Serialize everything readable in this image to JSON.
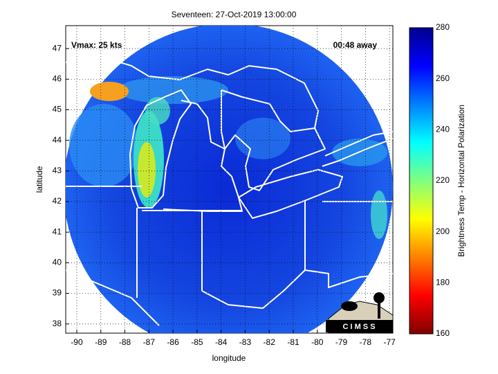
{
  "chart_data": {
    "type": "map",
    "title": "Seventeen: 27-Oct-2019 13:00:00",
    "xlabel": "longitude",
    "ylabel": "latitude",
    "xlim": [
      -90.46,
      -76.86
    ],
    "ylim": [
      37.7,
      47.75
    ],
    "xticks": [
      -90,
      -89,
      -88,
      -87,
      -86,
      -85,
      -84,
      -83,
      -82,
      -81,
      -80,
      -79,
      -78,
      -77
    ],
    "yticks": [
      38,
      39,
      40,
      41,
      42,
      43,
      44,
      45,
      46,
      47
    ],
    "grid": true,
    "annotations": [
      "Vmax: 25 kts",
      "00:48 away"
    ],
    "logo": "C I M S S",
    "colorbar": {
      "label": "Brightness Temp - Horizontal Polarization",
      "lim": [
        160,
        280
      ],
      "ticks": [
        160,
        180,
        200,
        220,
        240,
        260,
        280
      ],
      "colormap": "jet"
    }
  }
}
